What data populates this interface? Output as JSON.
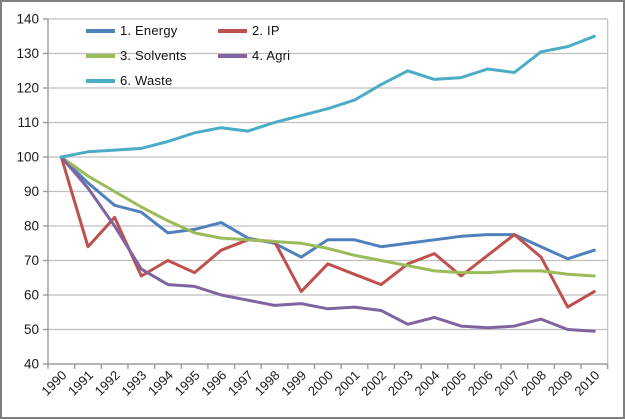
{
  "chart_data": {
    "type": "line",
    "title": "",
    "xlabel": "",
    "ylabel": "",
    "categories": [
      "1990",
      "1991",
      "1992",
      "1993",
      "1994",
      "1995",
      "1996",
      "1997",
      "1998",
      "1999",
      "2000",
      "2001",
      "2002",
      "2003",
      "2004",
      "2005",
      "2006",
      "2007",
      "2008",
      "2009",
      "2010"
    ],
    "series": [
      {
        "name": "1. Energy",
        "color": "#4F81BD",
        "values": [
          100,
          92.5,
          86,
          84,
          78,
          79,
          81,
          76.5,
          75,
          71,
          76,
          76,
          74,
          75,
          76,
          77,
          77.5,
          77.5,
          74,
          70.5,
          73
        ]
      },
      {
        "name": "2. IP",
        "color": "#C0504D",
        "values": [
          100,
          74,
          82.5,
          65.5,
          70,
          66.5,
          73,
          76,
          75.5,
          61,
          69,
          66,
          63,
          69,
          72,
          65.5,
          71.5,
          77.5,
          71,
          56.5,
          61
        ]
      },
      {
        "name": "3. Solvents",
        "color": "#9BBB59",
        "values": [
          100,
          94.5,
          90,
          85.5,
          81.5,
          78,
          76.5,
          76,
          75.5,
          75,
          73.5,
          71.5,
          70,
          68.5,
          67,
          66.5,
          66.5,
          67,
          67,
          66,
          65.5
        ]
      },
      {
        "name": "4. Agri",
        "color": "#8064A2",
        "values": [
          100,
          91,
          80,
          67.5,
          63,
          62.5,
          60,
          58.5,
          57,
          57.5,
          56,
          56.5,
          55.5,
          51.5,
          53.5,
          51,
          50.5,
          51,
          53,
          50,
          49.5
        ]
      },
      {
        "name": "6. Waste",
        "color": "#4BACC6",
        "values": [
          100,
          101.5,
          102,
          102.5,
          104.5,
          107,
          108.5,
          107.5,
          110,
          112,
          114,
          116.5,
          121,
          125,
          122.5,
          123,
          125.5,
          124.5,
          130.5,
          132,
          135
        ]
      }
    ],
    "ylim": [
      40,
      140
    ],
    "y_ticks": [
      40,
      50,
      60,
      70,
      80,
      90,
      100,
      110,
      120,
      130,
      140
    ],
    "index_base": 100,
    "grid": true,
    "legend_position": "top-left-inside",
    "colors": {
      "gridline": "#BFBFBF",
      "axis": "#9C9C9C",
      "tick_label": "#1a1a1a"
    }
  }
}
